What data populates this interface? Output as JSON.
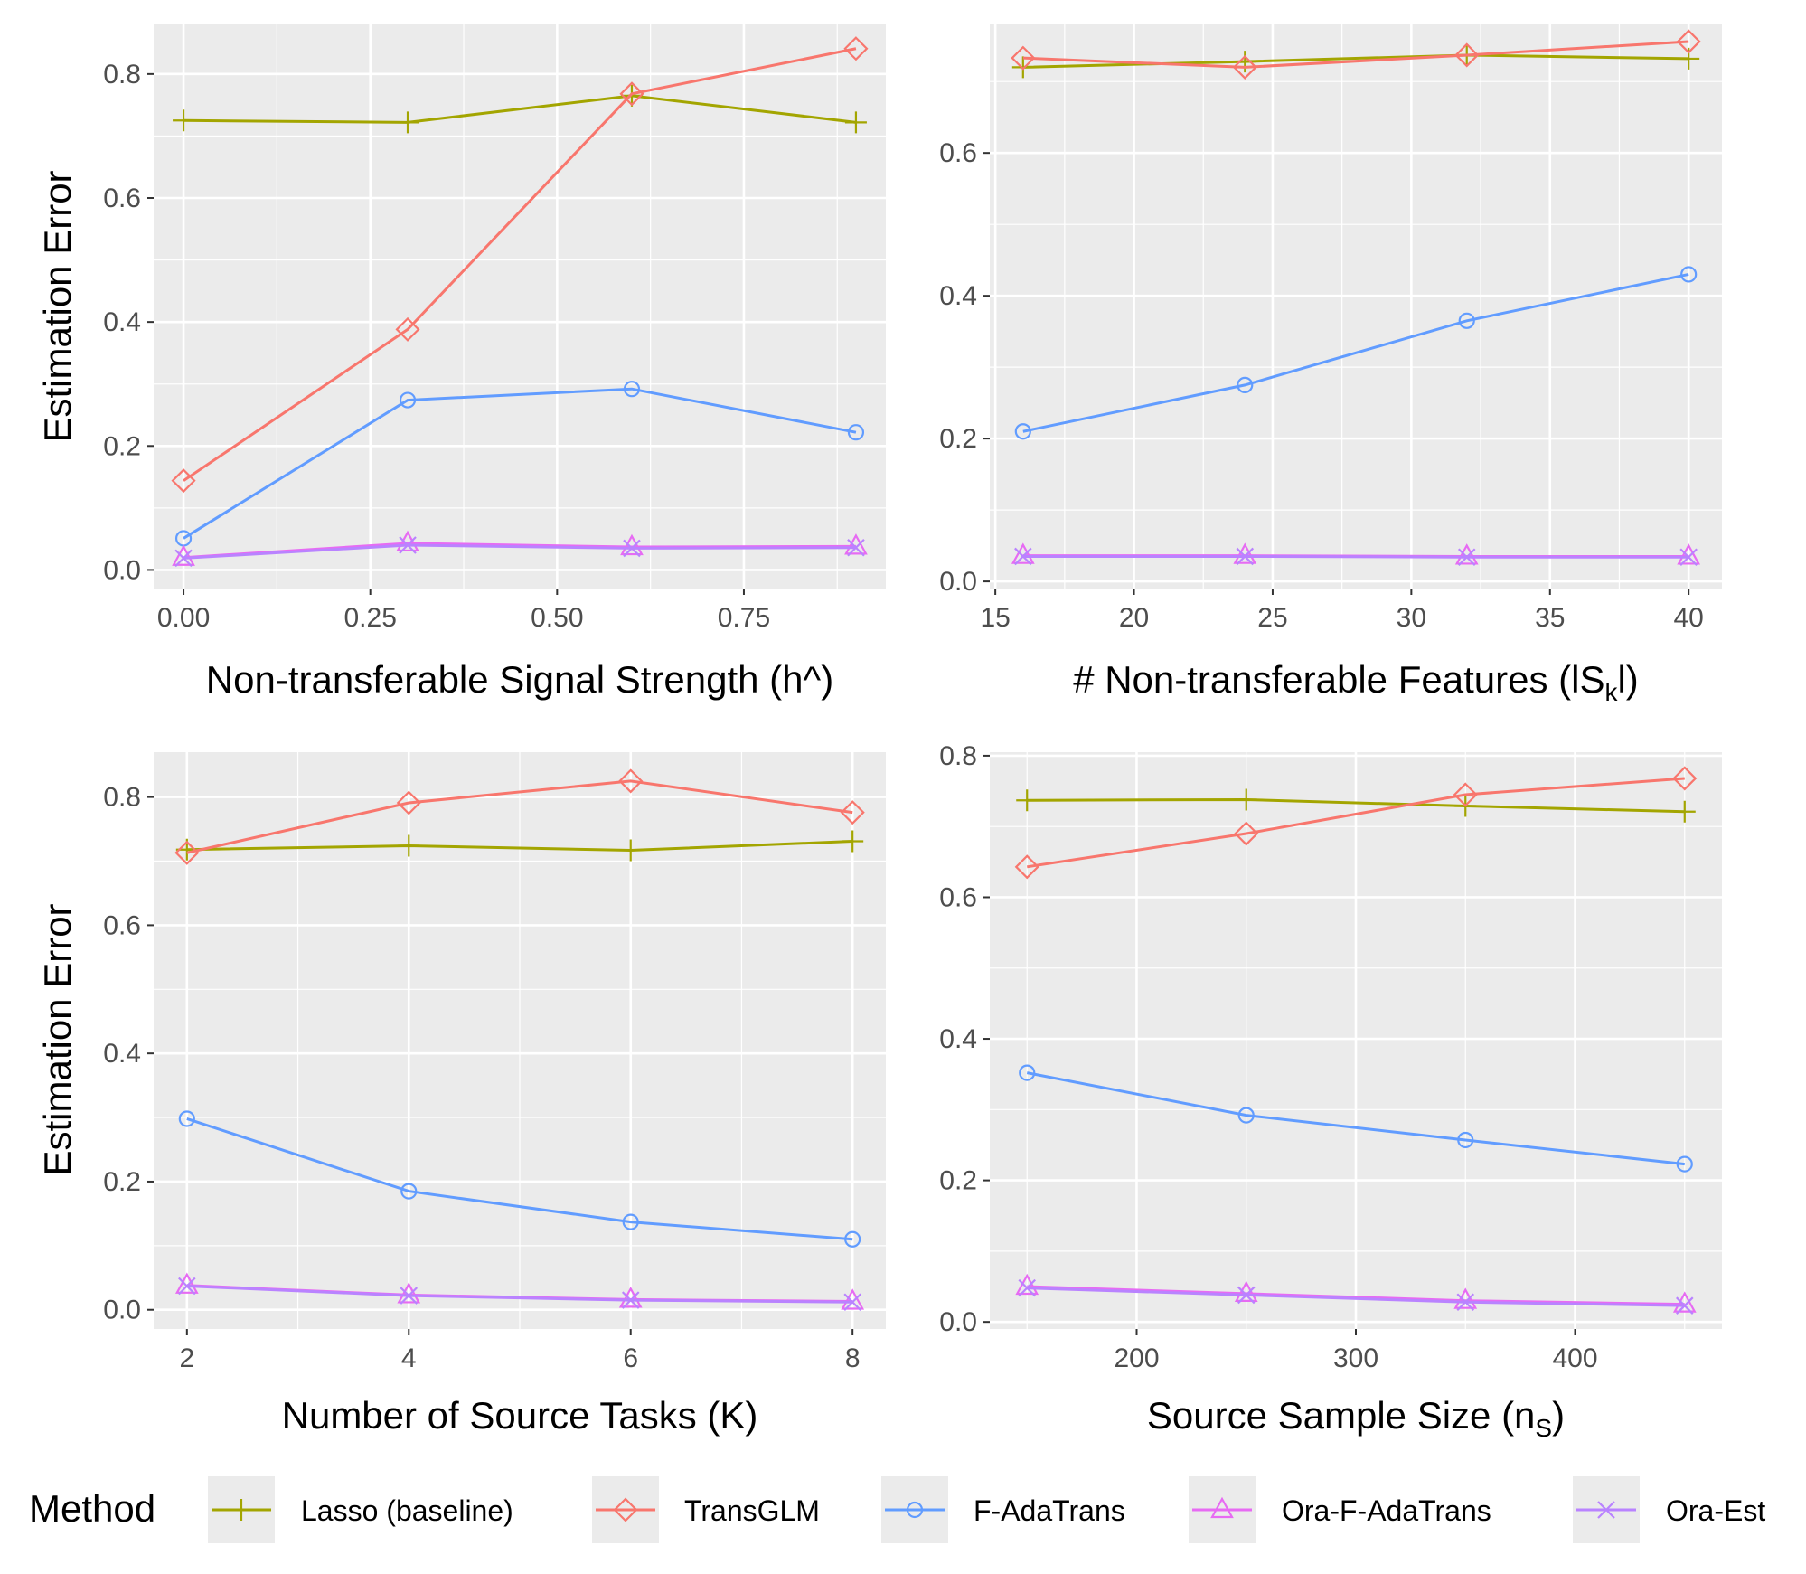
{
  "legend": {
    "title": "Method",
    "items": [
      {
        "label": "Lasso (baseline)",
        "color": "#A3A500",
        "shape": "plus"
      },
      {
        "label": "TransGLM",
        "color": "#F8766D",
        "shape": "diamond"
      },
      {
        "label": "F-AdaTrans",
        "color": "#619CFF",
        "shape": "circle"
      },
      {
        "label": "Ora-F-AdaTrans",
        "color": "#E76BF3",
        "shape": "triangle"
      },
      {
        "label": "Ora-Est",
        "color": "#B983FF",
        "shape": "cross"
      }
    ]
  },
  "chart_data": [
    {
      "type": "line",
      "xlabel": "Non-transferable Signal Strength (h^)",
      "ylabel": "Estimation Error",
      "xlim": [
        -0.04,
        0.94
      ],
      "ylim": [
        -0.03,
        0.88
      ],
      "xticks": [
        0,
        0.25,
        0.5,
        0.75
      ],
      "xtick_labels": [
        "0.00",
        "0.25",
        "0.50",
        "0.75"
      ],
      "yticks": [
        0,
        0.2,
        0.4,
        0.6,
        0.8
      ],
      "ytick_labels": [
        "0.0",
        "0.2",
        "0.4",
        "0.6",
        "0.8"
      ],
      "x": [
        0,
        0.3,
        0.6,
        0.9
      ],
      "series": [
        {
          "name": "Lasso (baseline)",
          "values": [
            0.725,
            0.722,
            0.765,
            0.722
          ]
        },
        {
          "name": "TransGLM",
          "values": [
            0.144,
            0.388,
            0.768,
            0.841
          ]
        },
        {
          "name": "F-AdaTrans",
          "values": [
            0.051,
            0.274,
            0.292,
            0.222
          ]
        },
        {
          "name": "Ora-F-AdaTrans",
          "values": [
            0.02,
            0.043,
            0.037,
            0.038
          ]
        },
        {
          "name": "Ora-Est",
          "values": [
            0.019,
            0.04,
            0.035,
            0.036
          ]
        }
      ]
    },
    {
      "type": "line",
      "xlabel": "# Non-transferable Features (|S_k|)",
      "xlabel_parts": {
        "main": "# Non-transferable Features (lS",
        "sub": "k",
        "end": "l)"
      },
      "ylabel": "",
      "xlim": [
        14.8,
        41.2
      ],
      "ylim": [
        -0.01,
        0.78
      ],
      "xticks": [
        15,
        20,
        25,
        30,
        35,
        40
      ],
      "xtick_labels": [
        "15",
        "20",
        "25",
        "30",
        "35",
        "40"
      ],
      "yticks": [
        0,
        0.2,
        0.4,
        0.6
      ],
      "ytick_labels": [
        "0.0",
        "0.2",
        "0.4",
        "0.6"
      ],
      "x": [
        16,
        24,
        32,
        40
      ],
      "series": [
        {
          "name": "Lasso (baseline)",
          "values": [
            0.72,
            0.728,
            0.737,
            0.732
          ]
        },
        {
          "name": "TransGLM",
          "values": [
            0.733,
            0.72,
            0.737,
            0.756
          ]
        },
        {
          "name": "F-AdaTrans",
          "values": [
            0.21,
            0.275,
            0.365,
            0.43
          ]
        },
        {
          "name": "Ora-F-AdaTrans",
          "values": [
            0.036,
            0.036,
            0.035,
            0.035
          ]
        },
        {
          "name": "Ora-Est",
          "values": [
            0.035,
            0.035,
            0.034,
            0.034
          ]
        }
      ]
    },
    {
      "type": "line",
      "xlabel": "Number of Source Tasks (K)",
      "ylabel": "Estimation Error",
      "xlim": [
        1.7,
        8.3
      ],
      "ylim": [
        -0.03,
        0.87
      ],
      "xticks": [
        2,
        4,
        6,
        8
      ],
      "xtick_labels": [
        "2",
        "4",
        "6",
        "8"
      ],
      "yticks": [
        0,
        0.2,
        0.4,
        0.6,
        0.8
      ],
      "ytick_labels": [
        "0.0",
        "0.2",
        "0.4",
        "0.6",
        "0.8"
      ],
      "x": [
        2,
        4,
        6,
        8
      ],
      "series": [
        {
          "name": "Lasso (baseline)",
          "values": [
            0.718,
            0.724,
            0.717,
            0.731
          ]
        },
        {
          "name": "TransGLM",
          "values": [
            0.713,
            0.791,
            0.825,
            0.776
          ]
        },
        {
          "name": "F-AdaTrans",
          "values": [
            0.298,
            0.185,
            0.137,
            0.11
          ]
        },
        {
          "name": "Ora-F-AdaTrans",
          "values": [
            0.038,
            0.023,
            0.016,
            0.013
          ]
        },
        {
          "name": "Ora-Est",
          "values": [
            0.037,
            0.022,
            0.015,
            0.012
          ]
        }
      ]
    },
    {
      "type": "line",
      "xlabel": "Source Sample Size (n_S)",
      "xlabel_parts": {
        "main": "Source Sample Size (n",
        "sub": "S",
        "end": ")"
      },
      "ylabel": "",
      "xlim": [
        133,
        467
      ],
      "ylim": [
        -0.01,
        0.805
      ],
      "xticks": [
        200,
        300,
        400
      ],
      "xtick_labels": [
        "200",
        "300",
        "400"
      ],
      "yticks": [
        0,
        0.2,
        0.4,
        0.6,
        0.8
      ],
      "ytick_labels": [
        "0.0",
        "0.2",
        "0.4",
        "0.6",
        "0.8"
      ],
      "x": [
        150,
        250,
        350,
        450
      ],
      "series": [
        {
          "name": "Lasso (baseline)",
          "values": [
            0.737,
            0.738,
            0.729,
            0.721
          ]
        },
        {
          "name": "TransGLM",
          "values": [
            0.643,
            0.69,
            0.745,
            0.768
          ]
        },
        {
          "name": "F-AdaTrans",
          "values": [
            0.352,
            0.292,
            0.257,
            0.223
          ]
        },
        {
          "name": "Ora-F-AdaTrans",
          "values": [
            0.05,
            0.04,
            0.03,
            0.025
          ]
        },
        {
          "name": "Ora-Est",
          "values": [
            0.048,
            0.038,
            0.028,
            0.023
          ]
        }
      ]
    }
  ]
}
